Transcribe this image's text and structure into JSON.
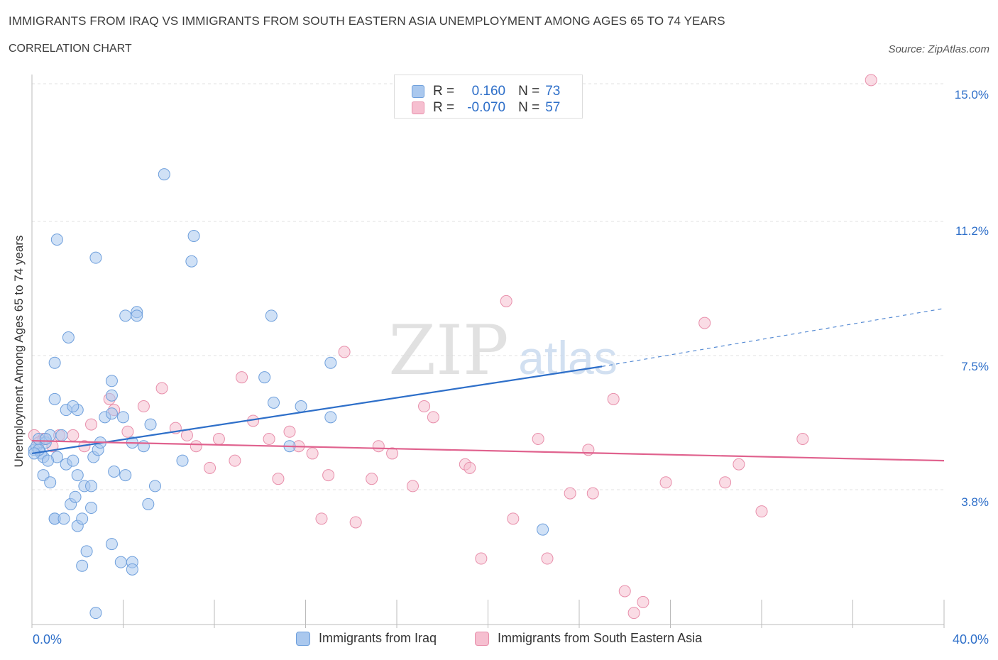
{
  "header": {
    "title": "IMMIGRANTS FROM IRAQ VS IMMIGRANTS FROM SOUTH EASTERN ASIA UNEMPLOYMENT AMONG AGES 65 TO 74 YEARS",
    "subtitle": "CORRELATION CHART",
    "source": "Source: ZipAtlas.com"
  },
  "watermark": {
    "zip": "ZIP",
    "atlas": "atlas"
  },
  "legend": {
    "series1": {
      "r_label": "R =",
      "r_value": "0.160",
      "n_label": "N =",
      "n_value": "73"
    },
    "series2": {
      "r_label": "R =",
      "r_value": "-0.070",
      "n_label": "N =",
      "n_value": "57"
    }
  },
  "bottom_legend": {
    "series1": "Immigrants from Iraq",
    "series2": "Immigrants from South Eastern Asia"
  },
  "colors": {
    "series1_fill": "#aac8ee",
    "series1_stroke": "#6e9fdc",
    "series1_line": "#2e6fc9",
    "series2_fill": "#f6bfd0",
    "series2_stroke": "#e88fab",
    "series2_line": "#e0628e",
    "axis_text": "#2e6fc9",
    "grid": "#e2e2e2"
  },
  "chart_data": {
    "type": "scatter",
    "title": "IMMIGRANTS FROM IRAQ VS IMMIGRANTS FROM SOUTH EASTERN ASIA UNEMPLOYMENT AMONG AGES 65 TO 74 YEARS",
    "xlabel": "",
    "ylabel": "Unemployment Among Ages 65 to 74 years",
    "xlim": [
      0,
      40
    ],
    "ylim": [
      0,
      15.5
    ],
    "x_tick_labels": [
      "0.0%",
      "40.0%"
    ],
    "y_ticks": [
      3.8,
      7.5,
      11.2,
      15.0
    ],
    "y_tick_labels": [
      "3.8%",
      "7.5%",
      "11.2%",
      "15.0%"
    ],
    "grid": true,
    "legend_position": "top-center",
    "series": [
      {
        "name": "Immigrants from Iraq",
        "R": 0.16,
        "N": 73,
        "trend": {
          "x_start": 0,
          "y_start": 4.8,
          "x_end": 25,
          "y_end": 7.2,
          "dashed_to_x": 40,
          "dashed_to_y": 8.8
        },
        "points": [
          [
            0.1,
            4.9
          ],
          [
            0.2,
            5.0
          ],
          [
            0.3,
            5.2
          ],
          [
            0.4,
            4.8
          ],
          [
            0.5,
            4.7
          ],
          [
            0.6,
            5.1
          ],
          [
            0.3,
            4.9
          ],
          [
            0.8,
            5.3
          ],
          [
            0.6,
            5.2
          ],
          [
            1.1,
            4.7
          ],
          [
            0.7,
            4.6
          ],
          [
            1.3,
            5.3
          ],
          [
            1.5,
            4.5
          ],
          [
            0.5,
            4.2
          ],
          [
            0.8,
            4.0
          ],
          [
            1.8,
            4.6
          ],
          [
            2.0,
            4.2
          ],
          [
            1.7,
            3.4
          ],
          [
            1.9,
            3.6
          ],
          [
            2.3,
            3.9
          ],
          [
            2.6,
            3.9
          ],
          [
            2.6,
            3.3
          ],
          [
            2.0,
            2.8
          ],
          [
            1.0,
            3.0
          ],
          [
            1.0,
            3.0
          ],
          [
            1.4,
            3.0
          ],
          [
            2.2,
            3.0
          ],
          [
            2.4,
            2.1
          ],
          [
            2.2,
            1.7
          ],
          [
            3.5,
            2.3
          ],
          [
            3.9,
            1.8
          ],
          [
            4.4,
            1.8
          ],
          [
            4.4,
            1.6
          ],
          [
            2.8,
            0.4
          ],
          [
            2.7,
            4.7
          ],
          [
            2.9,
            4.9
          ],
          [
            3.0,
            5.1
          ],
          [
            3.6,
            4.3
          ],
          [
            4.1,
            4.2
          ],
          [
            4.4,
            5.1
          ],
          [
            4.9,
            5.0
          ],
          [
            5.1,
            3.4
          ],
          [
            5.4,
            3.9
          ],
          [
            5.2,
            5.6
          ],
          [
            3.2,
            5.8
          ],
          [
            3.5,
            5.9
          ],
          [
            4.0,
            5.8
          ],
          [
            3.5,
            6.4
          ],
          [
            3.5,
            6.8
          ],
          [
            1.0,
            6.3
          ],
          [
            1.5,
            6.0
          ],
          [
            2.0,
            6.0
          ],
          [
            1.0,
            7.3
          ],
          [
            1.6,
            8.0
          ],
          [
            4.1,
            8.6
          ],
          [
            4.6,
            8.7
          ],
          [
            4.6,
            8.6
          ],
          [
            1.1,
            10.7
          ],
          [
            2.8,
            10.2
          ],
          [
            7.1,
            10.8
          ],
          [
            7.0,
            10.1
          ],
          [
            5.8,
            12.5
          ],
          [
            6.6,
            4.6
          ],
          [
            10.5,
            8.6
          ],
          [
            10.2,
            6.9
          ],
          [
            10.6,
            6.2
          ],
          [
            11.8,
            6.1
          ],
          [
            11.3,
            5.0
          ],
          [
            13.1,
            7.3
          ],
          [
            13.1,
            5.8
          ],
          [
            22.4,
            2.7
          ],
          [
            0.1,
            4.8
          ],
          [
            1.8,
            6.1
          ]
        ]
      },
      {
        "name": "Immigrants from South Eastern Asia",
        "R": -0.07,
        "N": 57,
        "trend": {
          "x_start": 0,
          "y_start": 5.15,
          "x_end": 40,
          "y_end": 4.6
        },
        "points": [
          [
            0.1,
            5.3
          ],
          [
            0.5,
            5.2
          ],
          [
            0.9,
            5.0
          ],
          [
            1.2,
            5.3
          ],
          [
            1.8,
            5.3
          ],
          [
            2.3,
            5.0
          ],
          [
            2.6,
            5.6
          ],
          [
            3.4,
            6.3
          ],
          [
            3.6,
            6.0
          ],
          [
            4.2,
            5.4
          ],
          [
            4.9,
            6.1
          ],
          [
            5.7,
            6.6
          ],
          [
            6.3,
            5.5
          ],
          [
            6.8,
            5.3
          ],
          [
            7.2,
            5.0
          ],
          [
            7.8,
            4.4
          ],
          [
            8.2,
            5.2
          ],
          [
            8.9,
            4.6
          ],
          [
            9.2,
            6.9
          ],
          [
            9.7,
            5.7
          ],
          [
            10.4,
            5.2
          ],
          [
            10.8,
            4.1
          ],
          [
            11.3,
            5.4
          ],
          [
            11.7,
            5.0
          ],
          [
            12.3,
            4.8
          ],
          [
            12.7,
            3.0
          ],
          [
            13.0,
            4.2
          ],
          [
            13.7,
            7.6
          ],
          [
            14.2,
            2.9
          ],
          [
            14.9,
            4.1
          ],
          [
            15.2,
            5.0
          ],
          [
            15.8,
            4.8
          ],
          [
            16.7,
            3.9
          ],
          [
            17.2,
            6.1
          ],
          [
            17.6,
            5.8
          ],
          [
            19.0,
            4.5
          ],
          [
            19.2,
            4.4
          ],
          [
            19.7,
            1.9
          ],
          [
            20.8,
            9.0
          ],
          [
            21.1,
            3.0
          ],
          [
            22.2,
            5.2
          ],
          [
            22.6,
            1.9
          ],
          [
            23.6,
            3.7
          ],
          [
            24.4,
            4.9
          ],
          [
            24.6,
            3.7
          ],
          [
            25.5,
            6.3
          ],
          [
            26.0,
            1.0
          ],
          [
            26.4,
            0.4
          ],
          [
            26.8,
            0.7
          ],
          [
            27.8,
            4.0
          ],
          [
            29.5,
            8.4
          ],
          [
            30.4,
            4.0
          ],
          [
            31.0,
            4.5
          ],
          [
            32.0,
            3.2
          ],
          [
            33.8,
            5.2
          ],
          [
            36.8,
            15.1
          ],
          [
            0.3,
            5.1
          ]
        ]
      }
    ]
  }
}
